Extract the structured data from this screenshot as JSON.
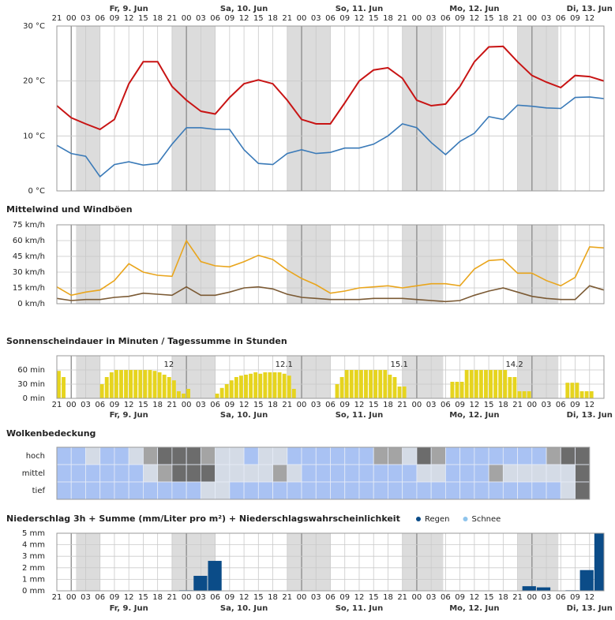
{
  "chart_data": [
    {
      "type": "line",
      "xlim": [
        21,
        135
      ],
      "xticks": [
        {
          "value": 21,
          "label": "21"
        },
        {
          "value": 24,
          "label": "00"
        },
        {
          "value": 27,
          "label": "03"
        },
        {
          "value": 30,
          "label": "06"
        },
        {
          "value": 33,
          "label": "09"
        },
        {
          "value": 36,
          "label": "12"
        },
        {
          "value": 39,
          "label": "15"
        },
        {
          "value": 42,
          "label": "18"
        },
        {
          "value": 45,
          "label": "21"
        },
        {
          "value": 48,
          "label": "00"
        },
        {
          "value": 51,
          "label": "03"
        },
        {
          "value": 54,
          "label": "06"
        },
        {
          "value": 57,
          "label": "09"
        },
        {
          "value": 60,
          "label": "12"
        },
        {
          "value": 63,
          "label": "15"
        },
        {
          "value": 66,
          "label": "18"
        },
        {
          "value": 69,
          "label": "21"
        },
        {
          "value": 72,
          "label": "00"
        },
        {
          "value": 75,
          "label": "03"
        },
        {
          "value": 78,
          "label": "06"
        },
        {
          "value": 81,
          "label": "09"
        },
        {
          "value": 84,
          "label": "12"
        },
        {
          "value": 87,
          "label": "15"
        },
        {
          "value": 90,
          "label": "18"
        },
        {
          "value": 93,
          "label": "21"
        },
        {
          "value": 96,
          "label": "00"
        },
        {
          "value": 99,
          "label": "03"
        },
        {
          "value": 102,
          "label": "06"
        },
        {
          "value": 105,
          "label": "09"
        },
        {
          "value": 108,
          "label": "12"
        },
        {
          "value": 111,
          "label": "15"
        },
        {
          "value": 114,
          "label": "18"
        },
        {
          "value": 117,
          "label": "21"
        },
        {
          "value": 120,
          "label": "00"
        },
        {
          "value": 123,
          "label": "03"
        },
        {
          "value": 126,
          "label": "06"
        },
        {
          "value": 129,
          "label": "09"
        },
        {
          "value": 132,
          "label": "12"
        }
      ],
      "day_labels": [
        {
          "value": 36,
          "label": "Fr, 9. Jun"
        },
        {
          "value": 60,
          "label": "Sa, 10. Jun"
        },
        {
          "value": 84,
          "label": "So, 11. Jun"
        },
        {
          "value": 108,
          "label": "Mo, 12. Jun"
        },
        {
          "value": 132,
          "label": "Di, 13. Jun"
        }
      ],
      "night": [
        [
          25,
          30
        ],
        [
          45,
          54
        ],
        [
          69,
          78
        ],
        [
          93,
          101.5
        ],
        [
          117,
          125.5
        ]
      ],
      "ylim": [
        0,
        30
      ],
      "yticks": [
        {
          "value": 0,
          "label": "0 °C"
        },
        {
          "value": 10,
          "label": "10 °C"
        },
        {
          "value": 20,
          "label": "20 °C"
        },
        {
          "value": 30,
          "label": "30 °C"
        }
      ],
      "x": [
        21,
        24,
        27,
        30,
        33,
        36,
        39,
        42,
        45,
        48,
        51,
        54,
        57,
        60,
        63,
        66,
        69,
        72,
        75,
        78,
        81,
        84,
        87,
        90,
        93,
        96,
        99,
        102,
        105,
        108,
        111,
        114,
        117,
        120,
        123,
        126,
        129,
        132,
        135
      ],
      "series": [
        {
          "color": "#c81414",
          "values": [
            15.5,
            13.3,
            12.2,
            11.2,
            13,
            19.5,
            23.5,
            23.5,
            19,
            16.5,
            14.5,
            14,
            17,
            19.5,
            20.2,
            19.5,
            16.5,
            13,
            12.2,
            12.2,
            16,
            20,
            22,
            22.4,
            20.5,
            16.5,
            15.5,
            15.8,
            19,
            23.5,
            26.2,
            26.3,
            23.5,
            21,
            19.8,
            18.8,
            21,
            20.8,
            20
          ]
        },
        {
          "color": "#3a7ab8",
          "values": [
            8.3,
            6.8,
            6.3,
            2.6,
            4.8,
            5.3,
            4.7,
            5,
            8.5,
            11.5,
            11.5,
            11.2,
            11.2,
            7.5,
            5,
            4.8,
            6.8,
            7.5,
            6.8,
            7,
            7.8,
            7.8,
            8.5,
            10,
            12.2,
            11.5,
            8.8,
            6.6,
            9,
            10.5,
            13.5,
            13,
            15.6,
            15.4,
            15.1,
            15,
            17,
            17.1,
            16.8
          ]
        }
      ]
    },
    {
      "type": "line",
      "title": "Mittelwind und Windböen",
      "ylim": [
        0,
        75
      ],
      "yticks": [
        {
          "value": 0,
          "label": "0 km/h"
        },
        {
          "value": 15,
          "label": "15 km/h"
        },
        {
          "value": 30,
          "label": "30 km/h"
        },
        {
          "value": 45,
          "label": "45 km/h"
        },
        {
          "value": 60,
          "label": "60 km/h"
        },
        {
          "value": 75,
          "label": "75 km/h"
        }
      ],
      "x": [
        21,
        24,
        27,
        30,
        33,
        36,
        39,
        42,
        45,
        48,
        51,
        54,
        57,
        60,
        63,
        66,
        69,
        72,
        75,
        78,
        81,
        84,
        87,
        90,
        93,
        96,
        99,
        102,
        105,
        108,
        111,
        114,
        117,
        120,
        123,
        126,
        129,
        132,
        135
      ],
      "series": [
        {
          "color": "#e9a51c",
          "values": [
            16,
            8,
            11,
            13,
            22,
            38,
            30,
            27,
            26,
            60,
            40,
            36,
            35,
            40,
            46,
            42,
            32,
            24,
            18,
            10,
            12,
            15,
            16,
            17,
            15,
            17,
            19,
            19,
            17,
            33,
            41,
            42,
            29,
            29,
            22,
            17,
            25,
            54,
            53
          ]
        },
        {
          "color": "#7b5a34",
          "values": [
            5,
            3,
            4,
            4,
            6,
            7,
            10,
            9,
            8,
            16,
            8,
            8,
            11,
            15,
            16,
            14,
            9,
            6,
            5,
            4,
            4,
            4,
            5,
            5,
            5,
            4,
            3,
            2,
            3,
            8,
            12,
            15,
            11,
            7,
            5,
            4,
            4,
            17,
            13
          ]
        }
      ]
    },
    {
      "type": "bar",
      "title": "Sonnenscheindauer in Minuten / Tagessumme in Stunden",
      "color": "#e6d41e",
      "ylim": [
        0,
        90
      ],
      "yticks": [
        {
          "value": 0,
          "label": "0 min"
        },
        {
          "value": 30,
          "label": "30 min"
        },
        {
          "value": 60,
          "label": "60 min"
        }
      ],
      "x": [
        21,
        22,
        30,
        31,
        32,
        33,
        34,
        35,
        36,
        37,
        38,
        39,
        40,
        41,
        42,
        43,
        44,
        45,
        46,
        47,
        48,
        54,
        55,
        56,
        57,
        58,
        59,
        60,
        61,
        62,
        63,
        64,
        65,
        66,
        67,
        68,
        69,
        70,
        79,
        80,
        81,
        82,
        83,
        84,
        85,
        86,
        87,
        88,
        89,
        90,
        91,
        92,
        93,
        103,
        104,
        105,
        106,
        107,
        108,
        109,
        110,
        111,
        112,
        113,
        114,
        115,
        116,
        117,
        118,
        119,
        127,
        128,
        129,
        130,
        131,
        132
      ],
      "values": [
        58,
        45,
        30,
        45,
        55,
        60,
        60,
        60,
        60,
        60,
        60,
        60,
        60,
        58,
        55,
        50,
        45,
        38,
        15,
        10,
        20,
        10,
        22,
        30,
        38,
        45,
        48,
        50,
        52,
        55,
        52,
        55,
        55,
        55,
        55,
        52,
        48,
        20,
        30,
        45,
        60,
        60,
        60,
        60,
        60,
        60,
        60,
        60,
        60,
        50,
        45,
        25,
        25,
        35,
        35,
        35,
        60,
        60,
        60,
        60,
        60,
        60,
        60,
        60,
        60,
        45,
        45,
        15,
        15,
        15,
        33,
        33,
        33,
        15,
        15,
        15
      ],
      "daily_sums": [
        12,
        12.1,
        15.1,
        14.2
      ]
    },
    {
      "type": "heatmap",
      "title": "Wolkenbedeckung",
      "rows": [
        "hoch",
        "mittel",
        "tief"
      ],
      "x": [
        21,
        24,
        27,
        30,
        33,
        36,
        39,
        42,
        45,
        48,
        51,
        54,
        57,
        60,
        63,
        66,
        69,
        72,
        75,
        78,
        81,
        84,
        87,
        90,
        93,
        96,
        99,
        102,
        105,
        108,
        111,
        114,
        117,
        120,
        123,
        126,
        129
      ],
      "colors": [
        "#a9c2f3",
        "#d4dbe6",
        "#a4a4a4",
        "#6c6c6c"
      ],
      "levels": [
        [
          0,
          0,
          1,
          0,
          0,
          1,
          2,
          3,
          3,
          3,
          2,
          1,
          1,
          0,
          1,
          1,
          0,
          0,
          0,
          0,
          0,
          0,
          2,
          2,
          1,
          3,
          2,
          0,
          0,
          0,
          0,
          0,
          0,
          0,
          2,
          3,
          3
        ],
        [
          0,
          0,
          0,
          0,
          0,
          0,
          1,
          2,
          3,
          3,
          3,
          1,
          1,
          1,
          1,
          2,
          1,
          0,
          0,
          0,
          0,
          0,
          0,
          0,
          0,
          1,
          1,
          0,
          0,
          0,
          2,
          1,
          1,
          1,
          1,
          1,
          3
        ],
        [
          0,
          0,
          0,
          0,
          0,
          0,
          0,
          0,
          0,
          0,
          1,
          1,
          0,
          0,
          0,
          0,
          0,
          0,
          0,
          0,
          0,
          0,
          0,
          0,
          0,
          0,
          0,
          0,
          0,
          0,
          0,
          0,
          0,
          0,
          0,
          1,
          3
        ]
      ]
    },
    {
      "type": "bar",
      "title": "Niederschlag 3h + Summe (mm/Liter pro m²) + Niederschlagswahrscheinlichkeit",
      "ylim": [
        0,
        5
      ],
      "yticks": [
        {
          "value": 0,
          "label": "0 mm"
        },
        {
          "value": 1,
          "label": "1 mm"
        },
        {
          "value": 2,
          "label": "2 mm"
        },
        {
          "value": 3,
          "label": "3 mm"
        },
        {
          "value": 4,
          "label": "4 mm"
        },
        {
          "value": 5,
          "label": "5 mm"
        }
      ],
      "series": [
        {
          "name": "Regen",
          "color": "#0b4c88",
          "x": [
            46.5,
            49.5,
            52.5,
            118,
            121,
            127,
            130,
            133
          ],
          "values": [
            0.05,
            1.3,
            2.6,
            0.4,
            0.3,
            0.05,
            1.8,
            5
          ]
        },
        {
          "name": "Schnee",
          "color": "#8ec4ec"
        }
      ]
    }
  ]
}
